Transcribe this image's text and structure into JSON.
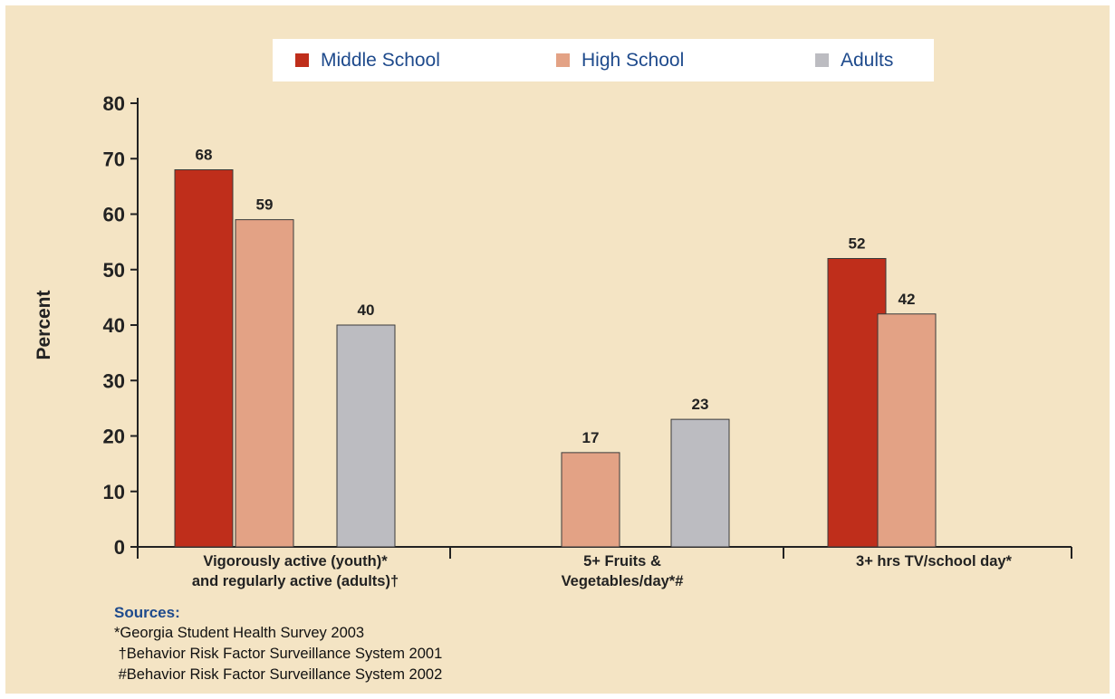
{
  "chart_data": {
    "type": "bar",
    "ylabel": "Percent",
    "ylim": [
      0,
      80
    ],
    "yticks": [
      0,
      10,
      20,
      30,
      40,
      50,
      60,
      70,
      80
    ],
    "categories": [
      [
        "Vigorously  active (youth)*",
        "and regularly active (adults)†"
      ],
      [
        "5+ Fruits &",
        "Vegetables/day*#"
      ],
      [
        "3+ hrs TV/school day*"
      ]
    ],
    "series": [
      {
        "name": "Middle School",
        "color": "#bf2e1b",
        "values": [
          68,
          null,
          52
        ]
      },
      {
        "name": "High School",
        "color": "#e3a285",
        "values": [
          59,
          17,
          42
        ]
      },
      {
        "name": "Adults",
        "color": "#bcbcc1",
        "values": [
          40,
          23,
          null
        ]
      }
    ],
    "legend_position": "top",
    "grid": false
  },
  "sources": {
    "title": "Sources:",
    "lines": [
      "*Georgia Student Health Survey 2003",
      " †Behavior Risk Factor Surveillance System 2001",
      " #Behavior Risk Factor Surveillance System 2002"
    ]
  }
}
